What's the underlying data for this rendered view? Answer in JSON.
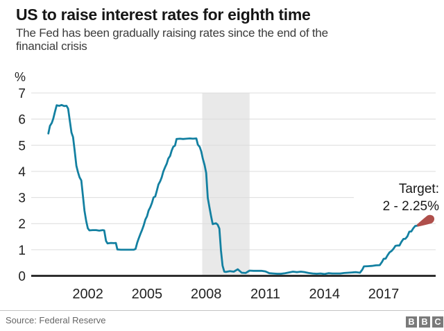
{
  "header": {
    "title": "US to raise interest rates for eighth time",
    "subtitle": "The Fed has been gradually raising rates since the end of the\nfinancial crisis"
  },
  "chart_data": {
    "type": "line",
    "title": "US to raise interest rates for eighth time",
    "ylabel": "%",
    "xlabel": "",
    "x_ticks": [
      2002,
      2005,
      2008,
      2011,
      2014,
      2017
    ],
    "y_ticks": [
      0,
      1,
      2,
      3,
      4,
      5,
      6,
      7
    ],
    "xlim": [
      1999.9,
      2019.6
    ],
    "ylim": [
      0,
      7
    ],
    "grid": true,
    "legend": "none",
    "recession_band": {
      "from": 2007.8,
      "to": 2010.2
    },
    "annotation": {
      "line1": "Target:",
      "line2": "2 - 2.25%"
    },
    "target_marker": {
      "from_year": 2018.7,
      "from_rate": 1.92,
      "to_year": 2019.35,
      "to_rate": 2.17
    },
    "colors": {
      "line": "#1380A1",
      "target": "#AF4F4B",
      "band": "#E9E9E9",
      "grid": "#DCDCDC",
      "axis": "#2E2E2E",
      "tick_text": "#222222"
    },
    "series": [
      {
        "points": [
          [
            2000.0,
            5.45
          ],
          [
            2000.08,
            5.74
          ],
          [
            2000.17,
            5.85
          ],
          [
            2000.25,
            6.02
          ],
          [
            2000.33,
            6.27
          ],
          [
            2000.42,
            6.53
          ],
          [
            2000.55,
            6.51
          ],
          [
            2000.67,
            6.54
          ],
          [
            2000.8,
            6.5
          ],
          [
            2000.92,
            6.51
          ],
          [
            2001.0,
            6.4
          ],
          [
            2001.08,
            5.98
          ],
          [
            2001.17,
            5.49
          ],
          [
            2001.25,
            5.31
          ],
          [
            2001.33,
            4.8
          ],
          [
            2001.42,
            4.21
          ],
          [
            2001.5,
            3.97
          ],
          [
            2001.58,
            3.77
          ],
          [
            2001.67,
            3.65
          ],
          [
            2001.75,
            3.07
          ],
          [
            2001.83,
            2.49
          ],
          [
            2001.92,
            2.09
          ],
          [
            2002.0,
            1.82
          ],
          [
            2002.08,
            1.74
          ],
          [
            2002.25,
            1.75
          ],
          [
            2002.42,
            1.75
          ],
          [
            2002.58,
            1.73
          ],
          [
            2002.75,
            1.75
          ],
          [
            2002.83,
            1.74
          ],
          [
            2002.92,
            1.34
          ],
          [
            2003.0,
            1.24
          ],
          [
            2003.17,
            1.26
          ],
          [
            2003.33,
            1.25
          ],
          [
            2003.42,
            1.26
          ],
          [
            2003.5,
            1.01
          ],
          [
            2003.67,
            1.0
          ],
          [
            2003.83,
            1.0
          ],
          [
            2004.0,
            1.0
          ],
          [
            2004.17,
            1.0
          ],
          [
            2004.33,
            1.0
          ],
          [
            2004.42,
            1.03
          ],
          [
            2004.5,
            1.26
          ],
          [
            2004.58,
            1.43
          ],
          [
            2004.67,
            1.61
          ],
          [
            2004.75,
            1.76
          ],
          [
            2004.83,
            1.93
          ],
          [
            2004.92,
            2.16
          ],
          [
            2005.0,
            2.28
          ],
          [
            2005.08,
            2.5
          ],
          [
            2005.17,
            2.63
          ],
          [
            2005.25,
            2.79
          ],
          [
            2005.33,
            3.0
          ],
          [
            2005.42,
            3.04
          ],
          [
            2005.5,
            3.26
          ],
          [
            2005.58,
            3.5
          ],
          [
            2005.67,
            3.62
          ],
          [
            2005.75,
            3.78
          ],
          [
            2005.83,
            4.0
          ],
          [
            2005.92,
            4.16
          ],
          [
            2006.0,
            4.29
          ],
          [
            2006.08,
            4.49
          ],
          [
            2006.17,
            4.59
          ],
          [
            2006.25,
            4.79
          ],
          [
            2006.33,
            4.94
          ],
          [
            2006.42,
            4.99
          ],
          [
            2006.5,
            5.24
          ],
          [
            2006.67,
            5.25
          ],
          [
            2006.83,
            5.24
          ],
          [
            2007.0,
            5.25
          ],
          [
            2007.17,
            5.26
          ],
          [
            2007.33,
            5.25
          ],
          [
            2007.5,
            5.26
          ],
          [
            2007.58,
            5.02
          ],
          [
            2007.67,
            4.94
          ],
          [
            2007.75,
            4.76
          ],
          [
            2007.83,
            4.49
          ],
          [
            2007.92,
            4.24
          ],
          [
            2008.0,
            3.94
          ],
          [
            2008.08,
            2.98
          ],
          [
            2008.17,
            2.61
          ],
          [
            2008.25,
            2.28
          ],
          [
            2008.33,
            1.98
          ],
          [
            2008.42,
            2.0
          ],
          [
            2008.5,
            2.01
          ],
          [
            2008.58,
            1.96
          ],
          [
            2008.67,
            1.81
          ],
          [
            2008.75,
            0.97
          ],
          [
            2008.83,
            0.39
          ],
          [
            2008.92,
            0.16
          ],
          [
            2009.0,
            0.15
          ],
          [
            2009.2,
            0.18
          ],
          [
            2009.4,
            0.16
          ],
          [
            2009.6,
            0.25
          ],
          [
            2009.8,
            0.12
          ],
          [
            2010.0,
            0.11
          ],
          [
            2010.2,
            0.2
          ],
          [
            2010.4,
            0.19
          ],
          [
            2010.6,
            0.19
          ],
          [
            2010.8,
            0.19
          ],
          [
            2011.0,
            0.17
          ],
          [
            2011.2,
            0.1
          ],
          [
            2011.4,
            0.09
          ],
          [
            2011.6,
            0.08
          ],
          [
            2011.8,
            0.08
          ],
          [
            2012.0,
            0.1
          ],
          [
            2012.2,
            0.13
          ],
          [
            2012.4,
            0.16
          ],
          [
            2012.6,
            0.14
          ],
          [
            2012.8,
            0.16
          ],
          [
            2013.0,
            0.14
          ],
          [
            2013.2,
            0.11
          ],
          [
            2013.4,
            0.09
          ],
          [
            2013.6,
            0.08
          ],
          [
            2013.8,
            0.09
          ],
          [
            2014.0,
            0.07
          ],
          [
            2014.2,
            0.1
          ],
          [
            2014.4,
            0.09
          ],
          [
            2014.6,
            0.09
          ],
          [
            2014.8,
            0.09
          ],
          [
            2015.0,
            0.11
          ],
          [
            2015.2,
            0.12
          ],
          [
            2015.4,
            0.13
          ],
          [
            2015.6,
            0.14
          ],
          [
            2015.8,
            0.12
          ],
          [
            2015.92,
            0.24
          ],
          [
            2016.0,
            0.36
          ],
          [
            2016.2,
            0.37
          ],
          [
            2016.4,
            0.38
          ],
          [
            2016.6,
            0.4
          ],
          [
            2016.8,
            0.41
          ],
          [
            2016.92,
            0.54
          ],
          [
            2017.0,
            0.65
          ],
          [
            2017.1,
            0.66
          ],
          [
            2017.2,
            0.79
          ],
          [
            2017.3,
            0.9
          ],
          [
            2017.4,
            0.95
          ],
          [
            2017.5,
            1.04
          ],
          [
            2017.6,
            1.15
          ],
          [
            2017.7,
            1.16
          ],
          [
            2017.8,
            1.16
          ],
          [
            2017.9,
            1.3
          ],
          [
            2018.0,
            1.41
          ],
          [
            2018.1,
            1.42
          ],
          [
            2018.2,
            1.51
          ],
          [
            2018.3,
            1.69
          ],
          [
            2018.4,
            1.7
          ],
          [
            2018.5,
            1.82
          ],
          [
            2018.6,
            1.91
          ],
          [
            2018.7,
            1.92
          ]
        ]
      }
    ]
  },
  "footer": {
    "source": "Source: Federal Reserve",
    "logo_letters": [
      "B",
      "B",
      "C"
    ]
  }
}
